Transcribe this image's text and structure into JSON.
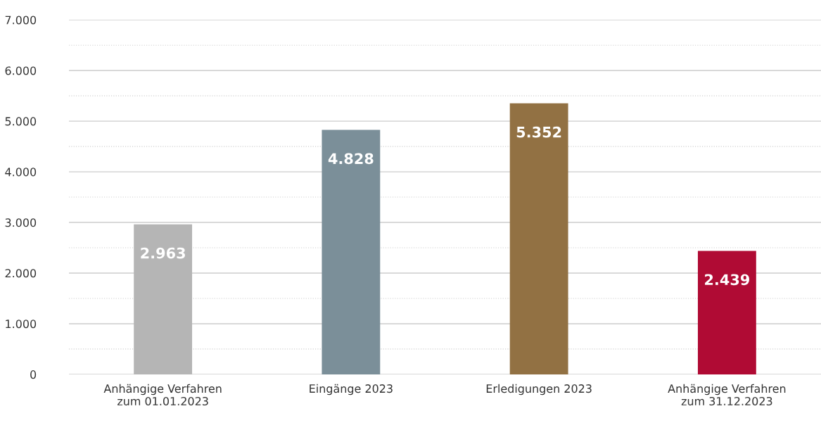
{
  "chart_data": {
    "type": "bar",
    "categories": [
      "Anhängige Verfahren\nzum 01.01.2023",
      "Eingänge 2023",
      "Erledigungen 2023",
      "Anhängige Verfahren\nzum 31.12.2023"
    ],
    "values": [
      2963,
      4828,
      5352,
      2439
    ],
    "colors": [
      "#b5b5b5",
      "#7b8f99",
      "#927143",
      "#b00b34"
    ],
    "value_labels": [
      "2.963",
      "4.828",
      "5.352",
      "2.439"
    ],
    "ylim": [
      0,
      7000
    ],
    "yticks": [
      0,
      {
        "value": 500,
        "label": null
      },
      {
        "value": 1000,
        "label": "1.000"
      },
      {
        "value": 1500,
        "label": null
      },
      {
        "value": 2000,
        "label": "2.000"
      },
      {
        "value": 2500,
        "label": null
      },
      {
        "value": 3000,
        "label": "3.000"
      },
      {
        "value": 3500,
        "label": null
      },
      {
        "value": 4000,
        "label": "4.000"
      },
      {
        "value": 4500,
        "label": null
      },
      {
        "value": 5000,
        "label": "5.000"
      },
      {
        "value": 5500,
        "label": null
      },
      {
        "value": 6000,
        "label": "6.000"
      },
      {
        "value": 6500,
        "label": null
      },
      {
        "value": 7000,
        "label": "7.000"
      }
    ],
    "grid": "y"
  }
}
